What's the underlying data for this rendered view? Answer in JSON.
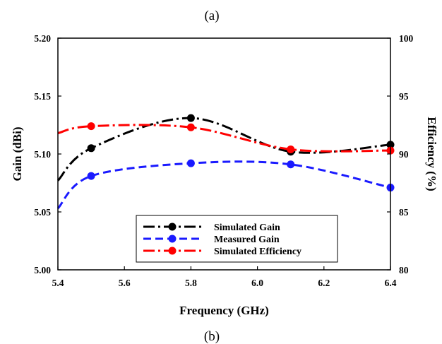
{
  "captions": {
    "top": "(a)",
    "bottom": "(b)"
  },
  "chart_data": {
    "type": "line",
    "xlabel": "Frequency (GHz)",
    "ylabel": "Gain (dBi)",
    "y2label": "Efficiency (%)",
    "xlim": [
      5.4,
      6.4
    ],
    "ylim": [
      5.0,
      5.2
    ],
    "y2lim": [
      80,
      100
    ],
    "x_ticks": [
      "5.4",
      "5.6",
      "5.8",
      "6.0",
      "6.2",
      "6.4"
    ],
    "y_ticks": [
      "5.00",
      "5.05",
      "5.10",
      "5.15",
      "5.20"
    ],
    "y2_ticks": [
      "80",
      "85",
      "90",
      "95",
      "100"
    ],
    "grid": false,
    "legend_position": "bottom-center",
    "series": [
      {
        "name": "Simulated Gain",
        "axis": "left",
        "color": "#000000",
        "dash": "dash-dot",
        "x": [
          5.4,
          5.5,
          5.8,
          6.1,
          6.4
        ],
        "values": [
          5.077,
          5.105,
          5.131,
          5.102,
          5.108
        ]
      },
      {
        "name": "Measured Gain",
        "axis": "left",
        "color": "#1a1aff",
        "dash": "dash",
        "x": [
          5.4,
          5.5,
          5.8,
          6.1,
          6.4
        ],
        "values": [
          5.053,
          5.081,
          5.092,
          5.091,
          5.071
        ]
      },
      {
        "name": "Simulated Efficiency",
        "axis": "right",
        "color": "#ff0000",
        "dash": "dash-dot",
        "x": [
          5.4,
          5.5,
          5.8,
          6.1,
          6.4
        ],
        "values": [
          91.8,
          92.4,
          92.3,
          90.4,
          90.3
        ]
      }
    ]
  }
}
